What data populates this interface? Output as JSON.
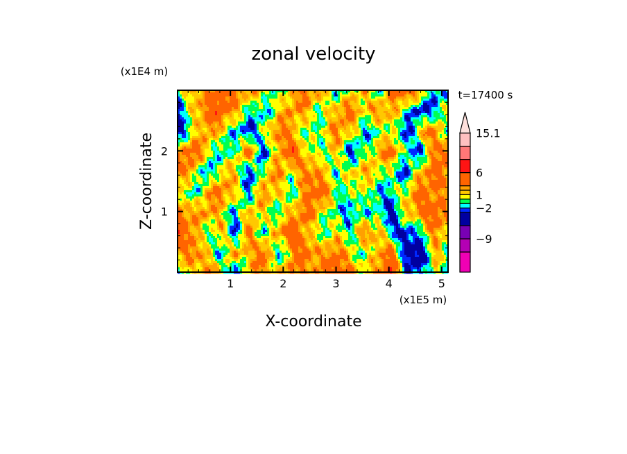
{
  "chart_data": {
    "type": "heatmap",
    "title": "zonal velocity",
    "xlabel": "X-coordinate",
    "ylabel": "Z-coordinate",
    "x_unit": "(x1E5 m)",
    "y_unit": "(x1E4 m)",
    "time_label": "t=17400 s",
    "xlim": [
      0,
      5.12
    ],
    "ylim": [
      0,
      3.0
    ],
    "xticks": [
      1,
      2,
      3,
      4,
      5
    ],
    "yticks": [
      1,
      2
    ],
    "xtick_labels": [
      "1",
      "2",
      "3",
      "4",
      "5"
    ],
    "ytick_labels": [
      "1",
      "2"
    ],
    "levels": [
      -15,
      -12,
      -9,
      -6,
      -3,
      -2,
      -1,
      0,
      1,
      2,
      3,
      6,
      9,
      12,
      15.1
    ],
    "colors": [
      "#f000b4",
      "#b400b4",
      "#7800b4",
      "#0000a0",
      "#0028ff",
      "#00ffff",
      "#00ff50",
      "#ffff00",
      "#ffc800",
      "#ffa000",
      "#ff6400",
      "#ff1414",
      "#ff7878",
      "#ffc0c0"
    ],
    "over_color": "#fde0dc",
    "colorbar_labels": [
      {
        "value": 15.1,
        "text": "15.1"
      },
      {
        "value": 6,
        "text": "6"
      },
      {
        "value": 1,
        "text": "1"
      },
      {
        "value": -2,
        "text": "−2"
      },
      {
        "value": -9,
        "text": "−9"
      }
    ],
    "field_note_rows_top_to_bottom": true,
    "field": [
      [
        -1,
        2,
        3,
        4,
        4,
        2,
        1,
        -1,
        2,
        4,
        2,
        -1,
        0,
        2,
        -1,
        3,
        5,
        2,
        -3,
        -1
      ],
      [
        -3,
        1,
        4,
        5,
        2,
        -1,
        -2,
        1,
        3,
        2,
        -1,
        2,
        4,
        1,
        3,
        2,
        -1,
        -4,
        -2,
        1
      ],
      [
        -4,
        0,
        3,
        1,
        -2,
        -3,
        0,
        4,
        2,
        -1,
        0,
        3,
        2,
        -2,
        -1,
        1,
        -4,
        2,
        4,
        -3
      ],
      [
        2,
        5,
        1,
        -2,
        0,
        4,
        -4,
        2,
        5,
        1,
        -1,
        2,
        -3,
        -1,
        2,
        4,
        -1,
        -3,
        3,
        5
      ],
      [
        3,
        2,
        -3,
        1,
        2,
        -4,
        1,
        3,
        0,
        4,
        2,
        -1,
        1,
        2,
        1,
        -1,
        -3,
        2,
        4,
        3
      ],
      [
        1,
        -2,
        2,
        4,
        1,
        -2,
        3,
        1,
        -1,
        3,
        5,
        0,
        -1,
        1,
        -2,
        -1,
        1,
        4,
        3,
        2
      ],
      [
        4,
        2,
        3,
        1,
        -2,
        2,
        1,
        -1,
        2,
        4,
        1,
        -1,
        -2,
        -1,
        -1,
        -4,
        2,
        3,
        5,
        2
      ],
      [
        5,
        3,
        -1,
        2,
        -3,
        4,
        -2,
        3,
        5,
        2,
        -1,
        1,
        -1,
        3,
        2,
        -2,
        -4,
        -1,
        3,
        1
      ],
      [
        2,
        4,
        1,
        -2,
        3,
        1,
        5,
        -3,
        3,
        4,
        2,
        4,
        1,
        -1,
        2,
        4,
        -4,
        -5,
        2,
        -1
      ],
      [
        -1,
        1,
        3,
        2,
        -4,
        2,
        3,
        1,
        4,
        2,
        3,
        5,
        3,
        1,
        3,
        6,
        -2,
        -3,
        1,
        -2
      ]
    ]
  }
}
